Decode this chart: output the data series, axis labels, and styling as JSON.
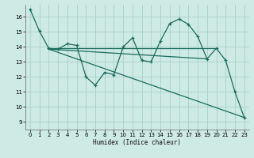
{
  "bg_color": "#ceeae4",
  "grid_color": "#aed4cc",
  "line_color": "#1a6b5a",
  "xlabel": "Humidex (Indice chaleur)",
  "xlim": [
    -0.5,
    23.5
  ],
  "ylim": [
    8.5,
    16.8
  ],
  "yticks": [
    9,
    10,
    11,
    12,
    13,
    14,
    15,
    16
  ],
  "xticks": [
    0,
    1,
    2,
    3,
    4,
    5,
    6,
    7,
    8,
    9,
    10,
    11,
    12,
    13,
    14,
    15,
    16,
    17,
    18,
    19,
    20,
    21,
    22,
    23
  ],
  "line1_x": [
    0,
    1,
    2,
    3,
    4,
    5,
    6,
    7,
    8,
    9,
    10,
    11,
    12,
    13,
    14,
    15,
    16,
    17,
    18,
    19,
    20,
    21,
    22,
    23
  ],
  "line1_y": [
    16.5,
    15.05,
    13.9,
    13.85,
    14.2,
    14.1,
    12.0,
    11.45,
    12.3,
    12.15,
    14.0,
    14.6,
    13.1,
    13.0,
    14.4,
    15.55,
    15.85,
    15.5,
    14.7,
    13.2,
    13.9,
    13.1,
    11.0,
    9.3
  ],
  "line2_x": [
    2,
    20
  ],
  "line2_y": [
    13.9,
    13.9
  ],
  "line3_x": [
    2,
    23
  ],
  "line3_y": [
    13.85,
    9.3
  ],
  "line4_x": [
    2,
    19
  ],
  "line4_y": [
    13.85,
    13.2
  ]
}
